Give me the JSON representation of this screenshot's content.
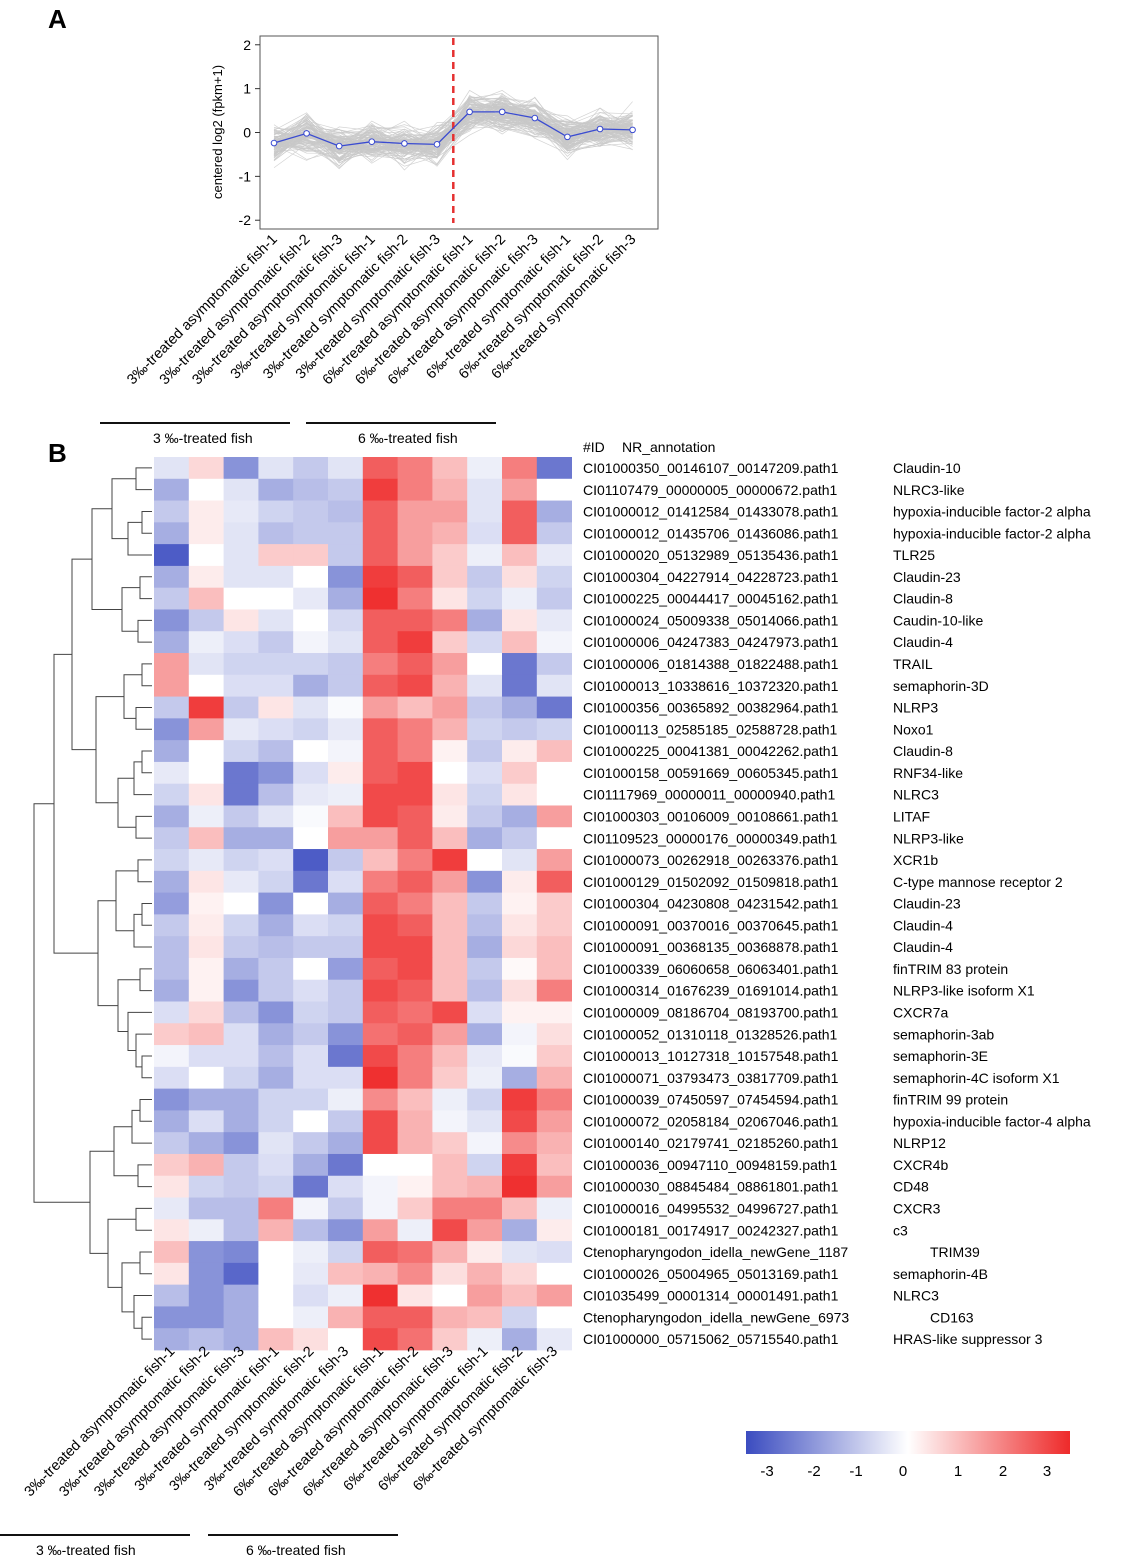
{
  "chart_data": [
    {
      "panel": "A",
      "type": "line",
      "ylabel": "centered log2 (fpkm+1)",
      "ylim": [
        -2.2,
        2.2
      ],
      "yticks": [
        2,
        1,
        0,
        -1,
        -2
      ],
      "categories": [
        "3‰-treated asymptomatic fish-1",
        "3‰-treated asymptomatic fish-2",
        "3‰-treated asymptomatic fish-3",
        "3‰-treated symptomatic fish-1",
        "3‰-treated symptomatic fish-2",
        "3‰-treated symptomatic fish-3",
        "6‰-treated asymptomatic fish-1",
        "6‰-treated asymptomatic fish-2",
        "6‰-treated asymptomatic fish-3",
        "6‰-treated symptomatic fish-1",
        "6‰-treated symptomatic fish-2",
        "6‰-treated symptomatic fish-3"
      ],
      "series": [
        {
          "name": "mean",
          "color": "#3a4bd1",
          "values": [
            -0.24,
            -0.02,
            -0.31,
            -0.21,
            -0.25,
            -0.27,
            0.47,
            0.47,
            0.33,
            -0.1,
            0.08,
            0.06
          ]
        }
      ],
      "band_color": "#c8c8c8",
      "divider_color": "#e53030",
      "groups": [
        "3 ‰-treated fish",
        "6 ‰-treated fish"
      ]
    },
    {
      "panel": "B",
      "type": "heatmap",
      "header_id": "#ID",
      "header_annotation": "NR_annotation",
      "columns": [
        "3‰-treated asymptomatic fish-1",
        "3‰-treated asymptomatic fish-2",
        "3‰-treated asymptomatic fish-3",
        "3‰-treated symptomatic fish-1",
        "3‰-treated symptomatic fish-2",
        "3‰-treated symptomatic fish-3",
        "6‰-treated asymptomatic fish-1",
        "6‰-treated asymptomatic fish-2",
        "6‰-treated asymptomatic fish-3",
        "6‰-treated symptomatic fish-1",
        "6‰-treated symptomatic fish-2",
        "6‰-treated symptomatic fish-3"
      ],
      "rows": [
        {
          "id": "CI01000350_00146107_00147209.path1",
          "annotation": "Claudin-10",
          "values": [
            -0.5,
            0.6,
            -2,
            -0.5,
            -1,
            -0.5,
            2.5,
            2,
            1,
            -0.3,
            2,
            -2.5
          ]
        },
        {
          "id": "CI01107479_00000005_00000672.path1",
          "annotation": "NLRC3-like",
          "values": [
            -1.5,
            0,
            -0.5,
            -1.5,
            -1.2,
            -1,
            3,
            2,
            1.2,
            -0.5,
            1.5,
            0
          ]
        },
        {
          "id": "CI01000012_01412584_01433078.path1",
          "annotation": "hypoxia-inducible factor-2 alpha",
          "values": [
            -1,
            0.3,
            -0.4,
            -0.8,
            -1,
            -1.2,
            2.5,
            1.5,
            1.5,
            -0.5,
            2.5,
            -1.5
          ]
        },
        {
          "id": "CI01000012_01435706_01436086.path1",
          "annotation": "hypoxia-inducible factor-2 alpha",
          "values": [
            -1.5,
            0.3,
            -0.5,
            -1.2,
            -1,
            -1,
            2.5,
            1.5,
            1.2,
            -0.6,
            2.5,
            -1
          ]
        },
        {
          "id": "CI01000020_05132989_05135436.path1",
          "annotation": "TLR25",
          "values": [
            -3,
            0,
            -0.5,
            0.8,
            0.8,
            -1,
            2.5,
            1.5,
            0.8,
            -0.3,
            1,
            -0.4
          ]
        },
        {
          "id": "CI01000304_04227914_04228723.path1",
          "annotation": "Claudin-23",
          "values": [
            -1.5,
            0.3,
            -0.5,
            -0.5,
            0,
            -2,
            3,
            2.5,
            0.8,
            -1,
            0.5,
            -0.8
          ]
        },
        {
          "id": "CI01000225_00044417_00045162.path1",
          "annotation": "Claudin-8",
          "values": [
            -1,
            1,
            0,
            0,
            -0.4,
            -1.5,
            3.2,
            2,
            0.4,
            -0.8,
            -0.3,
            -1
          ]
        },
        {
          "id": "CI01000024_05009338_05014066.path1",
          "annotation": "Caudin-10-like",
          "values": [
            -2,
            -1,
            0.4,
            -0.5,
            0,
            -0.7,
            2.5,
            2.5,
            2,
            -1.5,
            0.4,
            -0.4
          ]
        },
        {
          "id": "CI01000006_04247383_04247973.path1",
          "annotation": "Claudin-4",
          "values": [
            -1.5,
            -0.3,
            -0.6,
            -1,
            -0.2,
            -0.5,
            2.5,
            3,
            0.8,
            -0.7,
            1,
            -0.2
          ]
        },
        {
          "id": "CI01000006_01814388_01822488.path1",
          "annotation": "TRAIL",
          "values": [
            1.5,
            -0.5,
            -0.8,
            -0.8,
            -0.8,
            -1,
            2,
            2.5,
            1.5,
            0,
            -2.5,
            -1
          ]
        },
        {
          "id": "CI01000013_10338616_10372320.path1",
          "annotation": "semaphorin-3D",
          "values": [
            1.5,
            0,
            -0.6,
            -0.6,
            -1.5,
            -1,
            2.5,
            2.8,
            1.2,
            -0.5,
            -2.5,
            -0.5
          ]
        },
        {
          "id": "CI01000356_00365892_00382964.path1",
          "annotation": "NLRP3",
          "values": [
            -1,
            3,
            -1,
            0.4,
            -0.5,
            -0.1,
            1.5,
            1,
            1.5,
            -1,
            -1.5,
            -2.5
          ]
        },
        {
          "id": "CI01000113_02585185_02588728.path1",
          "annotation": "Noxo1",
          "values": [
            -2,
            1.5,
            -0.4,
            -0.6,
            -0.8,
            -0.4,
            2.5,
            2,
            1.2,
            -0.8,
            -1,
            -0.8
          ]
        },
        {
          "id": "CI01000225_00041381_00042262.path1",
          "annotation": "Claudin-8",
          "values": [
            -1.5,
            0,
            -0.8,
            -1.2,
            0,
            -0.2,
            2.5,
            2,
            0.2,
            -1,
            0.3,
            1
          ]
        },
        {
          "id": "CI01000158_00591669_00605345.path1",
          "annotation": "RNF34-like",
          "values": [
            -0.4,
            0,
            -2.5,
            -2,
            -0.6,
            0.3,
            2.5,
            2.8,
            0,
            -0.6,
            0.8,
            0
          ]
        },
        {
          "id": "CI01117969_00000011_00000940.path1",
          "annotation": "NLRC3",
          "values": [
            -0.8,
            0.4,
            -2.5,
            -1.2,
            -0.4,
            -0.3,
            2.8,
            2.8,
            0.4,
            -0.8,
            0.4,
            0
          ]
        },
        {
          "id": "CI01000303_00106009_00108661.path1",
          "annotation": "LITAF",
          "values": [
            -1.5,
            -0.3,
            -1,
            -0.5,
            -0.1,
            1,
            2.8,
            2.5,
            0.3,
            -1,
            -1.5,
            1.5
          ]
        },
        {
          "id": "CI01109523_00000176_00000349.path1",
          "annotation": "NLRP3-like",
          "values": [
            -1,
            1,
            -1.5,
            -1.5,
            0,
            1.5,
            1.5,
            2.5,
            1,
            -1.5,
            -1,
            0
          ]
        },
        {
          "id": "CI01000073_00262918_00263376.path1",
          "annotation": "XCR1b",
          "values": [
            -0.8,
            -0.4,
            -0.8,
            -0.6,
            -3,
            -1,
            1,
            2,
            3,
            0,
            -0.5,
            1.5
          ]
        },
        {
          "id": "CI01000129_01502092_01509818.path1",
          "annotation": "C-type mannose receptor 2",
          "values": [
            -1.5,
            0.4,
            -0.4,
            -0.8,
            -2.5,
            -0.6,
            2,
            2.5,
            1.5,
            -2,
            0.3,
            2.5
          ]
        },
        {
          "id": "CI01000304_04230808_04231542.path1",
          "annotation": "Claudin-23",
          "values": [
            -1.8,
            0.2,
            0,
            -2,
            0,
            -1.5,
            2.5,
            2,
            1,
            -1,
            0.2,
            0.8
          ]
        },
        {
          "id": "CI01000091_00370016_00370645.path1",
          "annotation": "Claudin-4",
          "values": [
            -1,
            0.3,
            -0.8,
            -1.5,
            -0.6,
            -0.8,
            2.8,
            2.5,
            1,
            -1.2,
            0.4,
            0.8
          ]
        },
        {
          "id": "CI01000091_00368135_00368878.path1",
          "annotation": "Claudin-4",
          "values": [
            -1.2,
            0.4,
            -1,
            -1.2,
            -1,
            -1,
            2.8,
            2.8,
            1,
            -1.5,
            0.6,
            1
          ]
        },
        {
          "id": "CI01000339_06060658_06063401.path1",
          "annotation": "finTRIM 83 protein",
          "values": [
            -1.2,
            0.2,
            -1.5,
            -1,
            0,
            -1.8,
            2.5,
            2.8,
            1,
            -1,
            0.1,
            1
          ]
        },
        {
          "id": "CI01000314_01676239_01691014.path1",
          "annotation": "NLRP3-like isoform X1",
          "values": [
            -1.5,
            0.2,
            -2,
            -1,
            -0.6,
            -1,
            2.8,
            2.5,
            1,
            -1.2,
            0.5,
            2
          ]
        },
        {
          "id": "CI01000009_08186704_08193700.path1",
          "annotation": "CXCR7a",
          "values": [
            -0.6,
            0.6,
            -1.2,
            -2,
            -0.8,
            -1,
            2.5,
            2.2,
            2.8,
            -0.6,
            0.2,
            0.2
          ]
        },
        {
          "id": "CI01000052_01310118_01328526.path1",
          "annotation": "semaphorin-3ab",
          "values": [
            0.8,
            1,
            -0.6,
            -1.5,
            -1,
            -2,
            2.2,
            2.5,
            1.5,
            -1.5,
            -0.2,
            0.5
          ]
        },
        {
          "id": "CI01000013_10127318_10157548.path1",
          "annotation": "semaphorin-3E",
          "values": [
            -0.2,
            -0.6,
            -0.6,
            -1.2,
            -0.6,
            -2.5,
            2.8,
            2,
            1,
            -0.4,
            -0.1,
            0.8
          ]
        },
        {
          "id": "CI01000071_03793473_03817709.path1",
          "annotation": "semaphorin-4C isoform X1",
          "values": [
            -0.6,
            0,
            -0.8,
            -1.5,
            -0.6,
            -0.6,
            3.2,
            2,
            0.8,
            -0.3,
            -1.5,
            1.2
          ]
        },
        {
          "id": "CI01000039_07450597_07454594.path1",
          "annotation": "finTRIM 99 protein",
          "values": [
            -2,
            -1.5,
            -1.5,
            -0.8,
            -0.8,
            -0.3,
            1.8,
            1,
            -0.3,
            -0.8,
            3,
            2
          ]
        },
        {
          "id": "CI01000072_02058184_02067046.path1",
          "annotation": "hypoxia-inducible factor-4 alpha",
          "values": [
            -1.5,
            -0.6,
            -1.5,
            -0.8,
            0,
            -1,
            2.8,
            1.2,
            -0.2,
            -0.5,
            2.8,
            1.5
          ]
        },
        {
          "id": "CI01000140_02179741_02185260.path1",
          "annotation": "NLRP12",
          "values": [
            -1,
            -1.5,
            -2,
            -0.5,
            -1,
            -1.5,
            2.8,
            1.2,
            0.8,
            -0.2,
            1.8,
            1.2
          ]
        },
        {
          "id": "CI01000036_00947110_00948159.path1",
          "annotation": "CXCR4b",
          "values": [
            0.8,
            1.2,
            -1,
            -0.6,
            -1.5,
            -2.5,
            0,
            0,
            1,
            -0.8,
            3,
            1
          ]
        },
        {
          "id": "CI01000030_08845484_08861801.path1",
          "annotation": "CD48",
          "values": [
            0.4,
            -0.8,
            -1,
            -0.8,
            -2.5,
            -0.6,
            -0.2,
            0.2,
            1,
            1.2,
            3.2,
            1.5
          ]
        },
        {
          "id": "CI01000016_04995532_04996727.path1",
          "annotation": "CXCR3",
          "values": [
            -0.4,
            -1.2,
            -1.2,
            2,
            -0.2,
            -1,
            -0.2,
            0.8,
            2,
            2,
            1,
            -0.3
          ]
        },
        {
          "id": "CI01000181_00174917_00242327.path1",
          "annotation": "c3",
          "values": [
            0.4,
            -0.3,
            -1.2,
            1.2,
            -1.2,
            -2,
            1.5,
            -0.3,
            2.8,
            1.5,
            -1.5,
            0.3
          ]
        },
        {
          "id": "Ctenopharyngodon_idella_newGene_1187",
          "annotation": "TRIM39",
          "values": [
            1,
            -2,
            -2.2,
            0,
            -0.3,
            -0.8,
            2.5,
            2.2,
            1.2,
            0.3,
            -0.5,
            -0.6
          ]
        },
        {
          "id": "CI01000026_05004965_05013169.path1",
          "annotation": "semaphorin-4B",
          "values": [
            0.4,
            -2,
            -2.8,
            0,
            -0.4,
            1,
            1.2,
            1.8,
            0.5,
            1.2,
            0.6,
            0
          ]
        },
        {
          "id": "CI01035499_00001314_00001491.path1",
          "annotation": "NLRC3",
          "values": [
            -1.2,
            -2,
            -1.5,
            0,
            -0.6,
            -0.3,
            3.2,
            0.4,
            0,
            1.5,
            1,
            1.5
          ]
        },
        {
          "id": "Ctenopharyngodon_idella_newGene_6973",
          "annotation": "CD163",
          "values": [
            -2,
            -2,
            -1.5,
            0,
            -0.3,
            1.2,
            2.5,
            2.5,
            1.2,
            1,
            -0.8,
            0
          ]
        },
        {
          "id": "CI01000000_05715062_05715540.path1",
          "annotation": "HRAS-like suppressor 3",
          "values": [
            -1.5,
            -1.2,
            -1.5,
            1,
            0.5,
            0,
            2.8,
            2.2,
            0.8,
            -0.3,
            -1.5,
            -0.4
          ]
        }
      ],
      "colorscale": {
        "low": "#3b4cc0",
        "mid": "#ffffff",
        "high": "#ee2a2a",
        "min": -3.3,
        "max": 3.3
      },
      "colorbar_ticks": [
        "-3",
        "-2",
        "-1",
        "0",
        "1",
        "2",
        "3"
      ],
      "groups": [
        "3 ‰-treated fish",
        "6 ‰-treated fish"
      ]
    }
  ],
  "panel_labels": {
    "a": "A",
    "b": "B"
  }
}
